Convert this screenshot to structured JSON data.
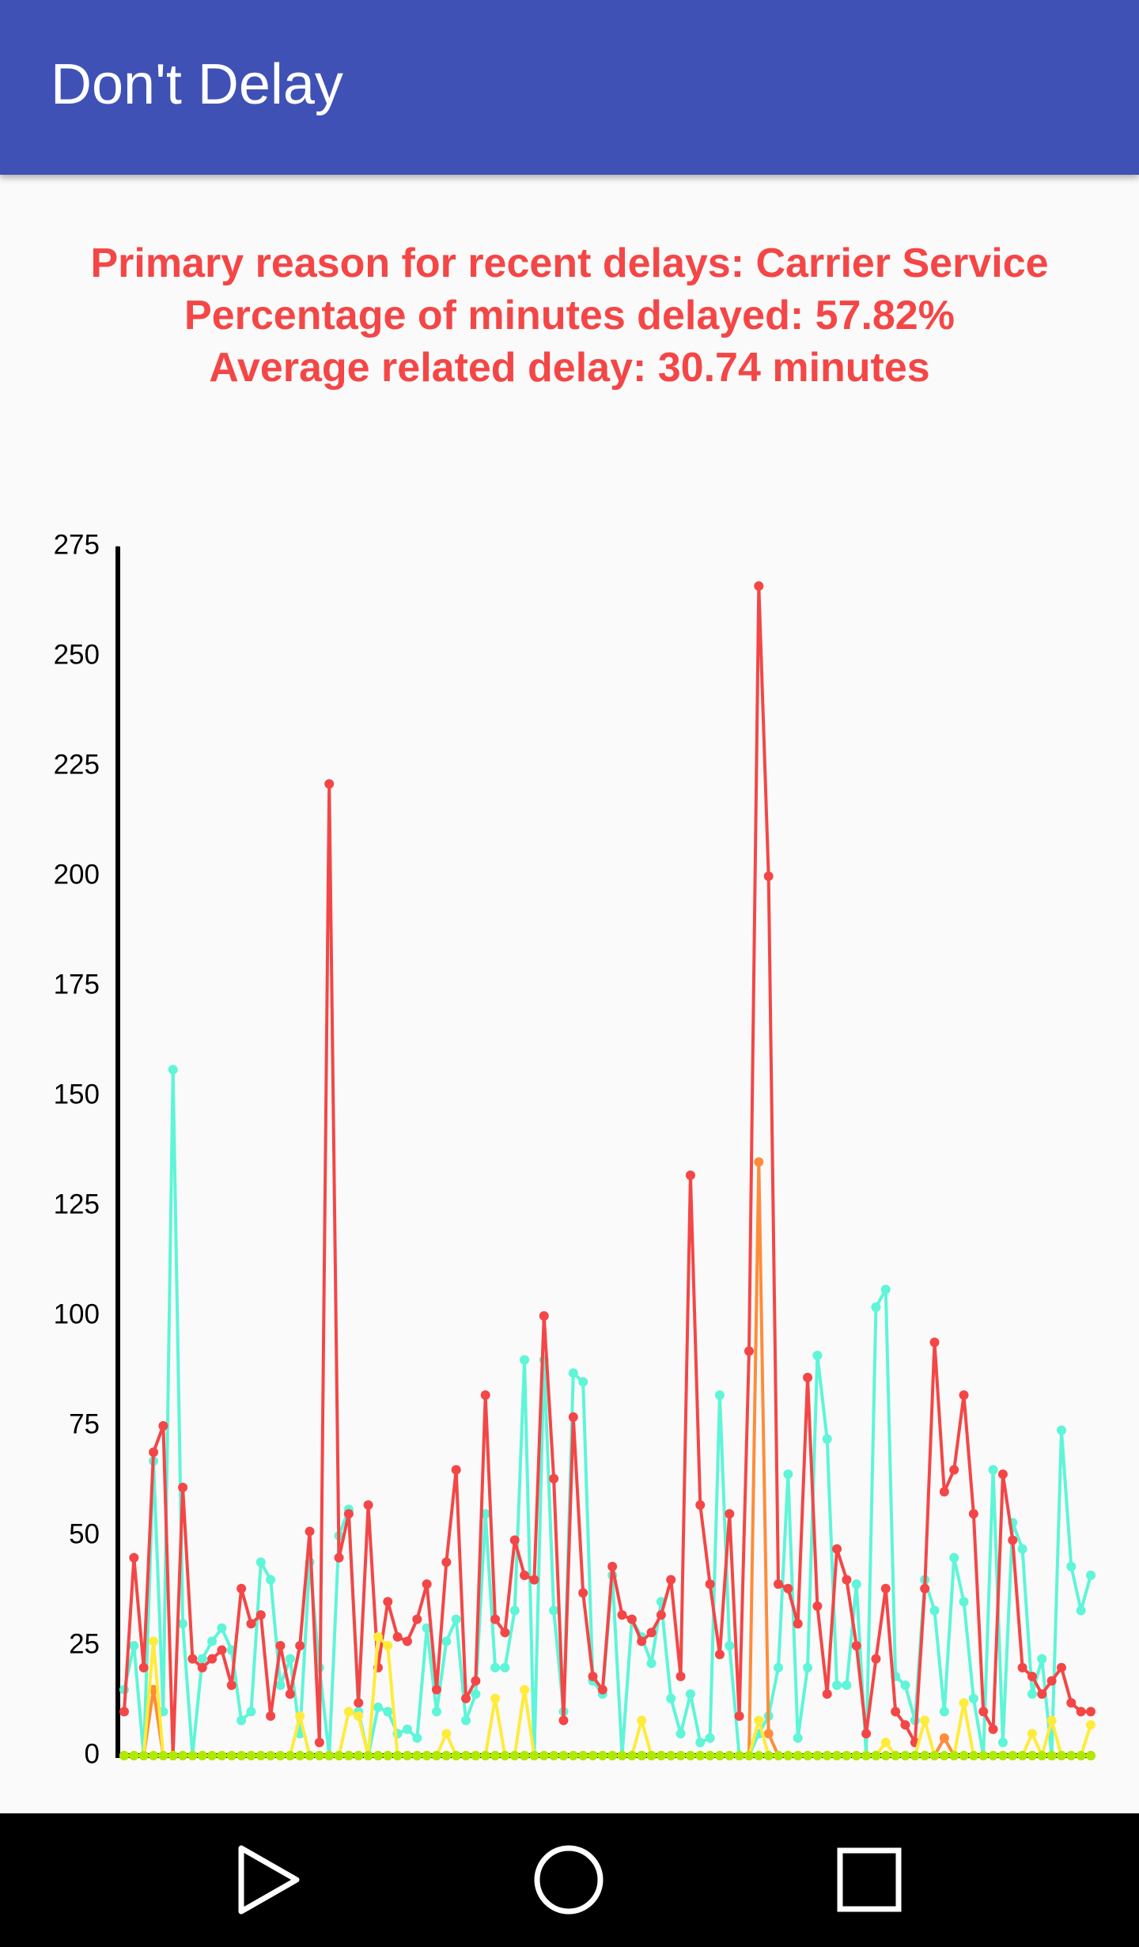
{
  "app_bar": {
    "title": "Don't Delay"
  },
  "summary": [
    "Primary reason for recent delays: Carrier Service",
    "Percentage of minutes delayed: 57.82%",
    "Average related delay: 30.74 minutes"
  ],
  "chart_data": {
    "type": "line",
    "ylim": [
      0,
      275
    ],
    "yticks": [
      0,
      25,
      50,
      75,
      100,
      125,
      150,
      175,
      200,
      225,
      250,
      275
    ],
    "series": [
      {
        "color": "#5ef5d8",
        "values": [
          15,
          25,
          0,
          67,
          10,
          156,
          30,
          0,
          22,
          26,
          29,
          24,
          8,
          10,
          44,
          40,
          16,
          22,
          5,
          44,
          20,
          0,
          50,
          56,
          10,
          0,
          11,
          10,
          5,
          6,
          4,
          29,
          10,
          26,
          31,
          8,
          14,
          55,
          20,
          20,
          33,
          90,
          0,
          90,
          33,
          10,
          87,
          85,
          17,
          14,
          41,
          0,
          31,
          27,
          21,
          35,
          13,
          5,
          14,
          3,
          4,
          82,
          25,
          0,
          0,
          5,
          9,
          20,
          64,
          4,
          20,
          91,
          72,
          16,
          16,
          39,
          0,
          102,
          106,
          18,
          16,
          8,
          40,
          33,
          10,
          45,
          35,
          13,
          0,
          65,
          3,
          53,
          47,
          14,
          22,
          0,
          74,
          43,
          33,
          41
        ]
      },
      {
        "color": "#f44646",
        "values": [
          10,
          45,
          20,
          69,
          75,
          0,
          61,
          22,
          20,
          22,
          24,
          16,
          38,
          30,
          32,
          9,
          25,
          14,
          25,
          51,
          3,
          221,
          45,
          55,
          12,
          57,
          20,
          35,
          27,
          26,
          31,
          39,
          15,
          44,
          65,
          13,
          17,
          82,
          31,
          28,
          49,
          41,
          40,
          100,
          63,
          8,
          77,
          37,
          18,
          15,
          43,
          32,
          31,
          26,
          28,
          32,
          40,
          18,
          132,
          57,
          39,
          23,
          55,
          9,
          92,
          266,
          200,
          39,
          38,
          30,
          86,
          34,
          14,
          47,
          40,
          25,
          5,
          22,
          38,
          10,
          7,
          3,
          38,
          94,
          60,
          65,
          82,
          55,
          10,
          6,
          64,
          49,
          20,
          18,
          14,
          17,
          20,
          12,
          10,
          10
        ]
      },
      {
        "color": "#ff8c3a",
        "values": [
          0,
          0,
          0,
          15,
          0,
          0,
          0,
          0,
          0,
          0,
          0,
          0,
          0,
          0,
          0,
          0,
          0,
          0,
          0,
          0,
          0,
          0,
          0,
          0,
          0,
          0,
          0,
          0,
          0,
          0,
          0,
          0,
          0,
          0,
          0,
          0,
          0,
          0,
          0,
          0,
          0,
          0,
          0,
          0,
          0,
          0,
          0,
          0,
          0,
          0,
          0,
          0,
          0,
          0,
          0,
          0,
          0,
          0,
          0,
          0,
          0,
          0,
          0,
          0,
          0,
          135,
          5,
          0,
          0,
          0,
          0,
          0,
          0,
          0,
          0,
          0,
          0,
          0,
          0,
          0,
          0,
          0,
          0,
          0,
          4,
          0,
          0,
          0,
          0,
          0,
          0,
          0,
          0,
          0,
          0,
          0,
          0,
          0,
          0,
          0
        ]
      },
      {
        "color": "#ffeb3b",
        "values": [
          0,
          0,
          0,
          26,
          0,
          0,
          0,
          0,
          0,
          0,
          0,
          0,
          0,
          0,
          0,
          0,
          0,
          0,
          9,
          0,
          0,
          0,
          0,
          10,
          9,
          0,
          27,
          25,
          0,
          0,
          0,
          0,
          0,
          5,
          0,
          0,
          0,
          0,
          13,
          0,
          0,
          15,
          0,
          0,
          0,
          0,
          0,
          0,
          0,
          0,
          0,
          0,
          0,
          8,
          0,
          0,
          0,
          0,
          0,
          0,
          0,
          0,
          0,
          0,
          0,
          8,
          0,
          0,
          0,
          0,
          0,
          0,
          0,
          0,
          0,
          0,
          0,
          0,
          3,
          0,
          0,
          0,
          8,
          0,
          0,
          0,
          12,
          0,
          0,
          0,
          0,
          0,
          0,
          5,
          0,
          8,
          0,
          0,
          0,
          7
        ]
      },
      {
        "color": "#aeea00",
        "values": [
          0,
          0,
          0,
          0,
          0,
          0,
          0,
          0,
          0,
          0,
          0,
          0,
          0,
          0,
          0,
          0,
          0,
          0,
          0,
          0,
          0,
          0,
          0,
          0,
          0,
          0,
          0,
          0,
          0,
          0,
          0,
          0,
          0,
          0,
          0,
          0,
          0,
          0,
          0,
          0,
          0,
          0,
          0,
          0,
          0,
          0,
          0,
          0,
          0,
          0,
          0,
          0,
          0,
          0,
          0,
          0,
          0,
          0,
          0,
          0,
          0,
          0,
          0,
          0,
          0,
          0,
          0,
          0,
          0,
          0,
          0,
          0,
          0,
          0,
          0,
          0,
          0,
          0,
          0,
          0,
          0,
          0,
          0,
          0,
          0,
          0,
          0,
          0,
          0,
          0,
          0,
          0,
          0,
          0,
          0,
          0,
          0,
          0,
          0,
          0
        ]
      }
    ]
  }
}
